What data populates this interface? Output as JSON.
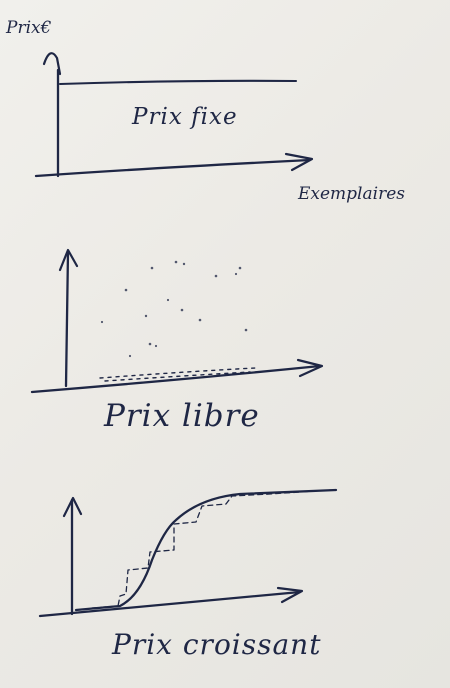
{
  "panels": [
    {
      "id": "fixed",
      "y_label": "Prix€",
      "x_label": "Exemplaires",
      "caption": "Prix fixe"
    },
    {
      "id": "free",
      "caption": "Prix libre"
    },
    {
      "id": "rising",
      "caption": "Prix croissant"
    }
  ],
  "ink_color": "#1f2745"
}
